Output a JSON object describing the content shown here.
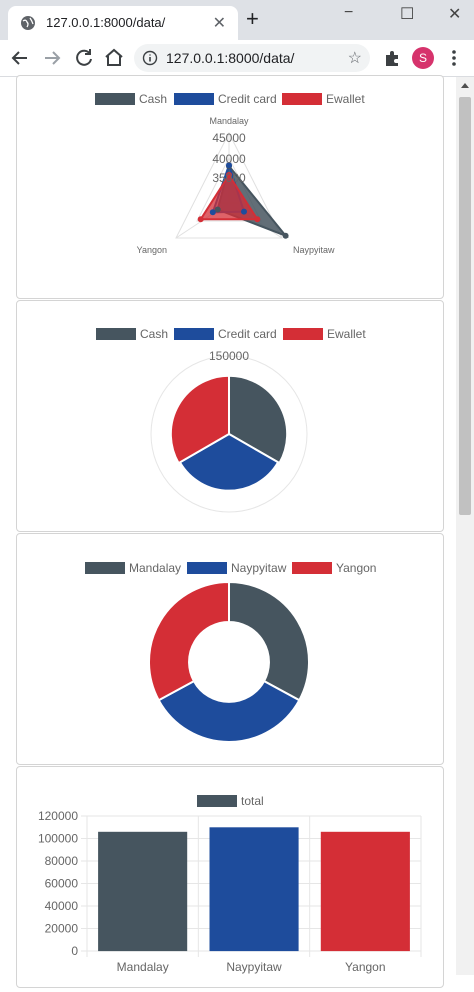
{
  "browser": {
    "tab_title": "127.0.0.1:8000/data/",
    "url": "127.0.0.1:8000/data/",
    "profile_initial": "S",
    "new_tab_glyph": "+",
    "tab_close_glyph": "✕",
    "star_glyph": "☆",
    "window_controls": [
      "−",
      "☐",
      "✕"
    ]
  },
  "colors": {
    "cash": "#46555f",
    "credit_card": "#1e4c9c",
    "ewallet": "#d42e36",
    "grid": "#e6e6e6",
    "text": "#666666"
  },
  "chart_data": [
    {
      "type": "radar",
      "labels": [
        "Mandalay",
        "Naypyitaw",
        "Yangon"
      ],
      "legend": [
        "Cash",
        "Credit card",
        "Ewallet"
      ],
      "ticks": [
        "35000",
        "40000",
        "45000"
      ],
      "scale": {
        "min": 30000,
        "max": 45000
      },
      "series": [
        {
          "name": "Cash",
          "values": [
            37900,
            44000,
            32800
          ]
        },
        {
          "name": "Credit card",
          "values": [
            38100,
            33700,
            34000
          ]
        },
        {
          "name": "Ewallet",
          "values": [
            36000,
            37000,
            37000
          ]
        }
      ]
    },
    {
      "type": "polar",
      "labels": [
        "Cash",
        "Credit card",
        "Ewallet"
      ],
      "legend": [
        "Cash",
        "Credit card",
        "Ewallet"
      ],
      "tick": "150000",
      "scale": {
        "max": 150000
      },
      "values": [
        112000,
        109000,
        112000
      ]
    },
    {
      "type": "doughnut",
      "labels": [
        "Mandalay",
        "Naypyitaw",
        "Yangon"
      ],
      "legend": [
        "Mandalay",
        "Naypyitaw",
        "Yangon"
      ],
      "values": [
        106000,
        110000,
        106000
      ]
    },
    {
      "type": "bar",
      "categories": [
        "Mandalay",
        "Naypyitaw",
        "Yangon"
      ],
      "legend": [
        "total"
      ],
      "series": [
        {
          "name": "total",
          "values": [
            106000,
            110000,
            106000
          ]
        }
      ],
      "y_ticks": [
        "0",
        "20000",
        "40000",
        "60000",
        "80000",
        "100000",
        "120000"
      ],
      "ylim": [
        0,
        120000
      ],
      "grid": true
    }
  ]
}
